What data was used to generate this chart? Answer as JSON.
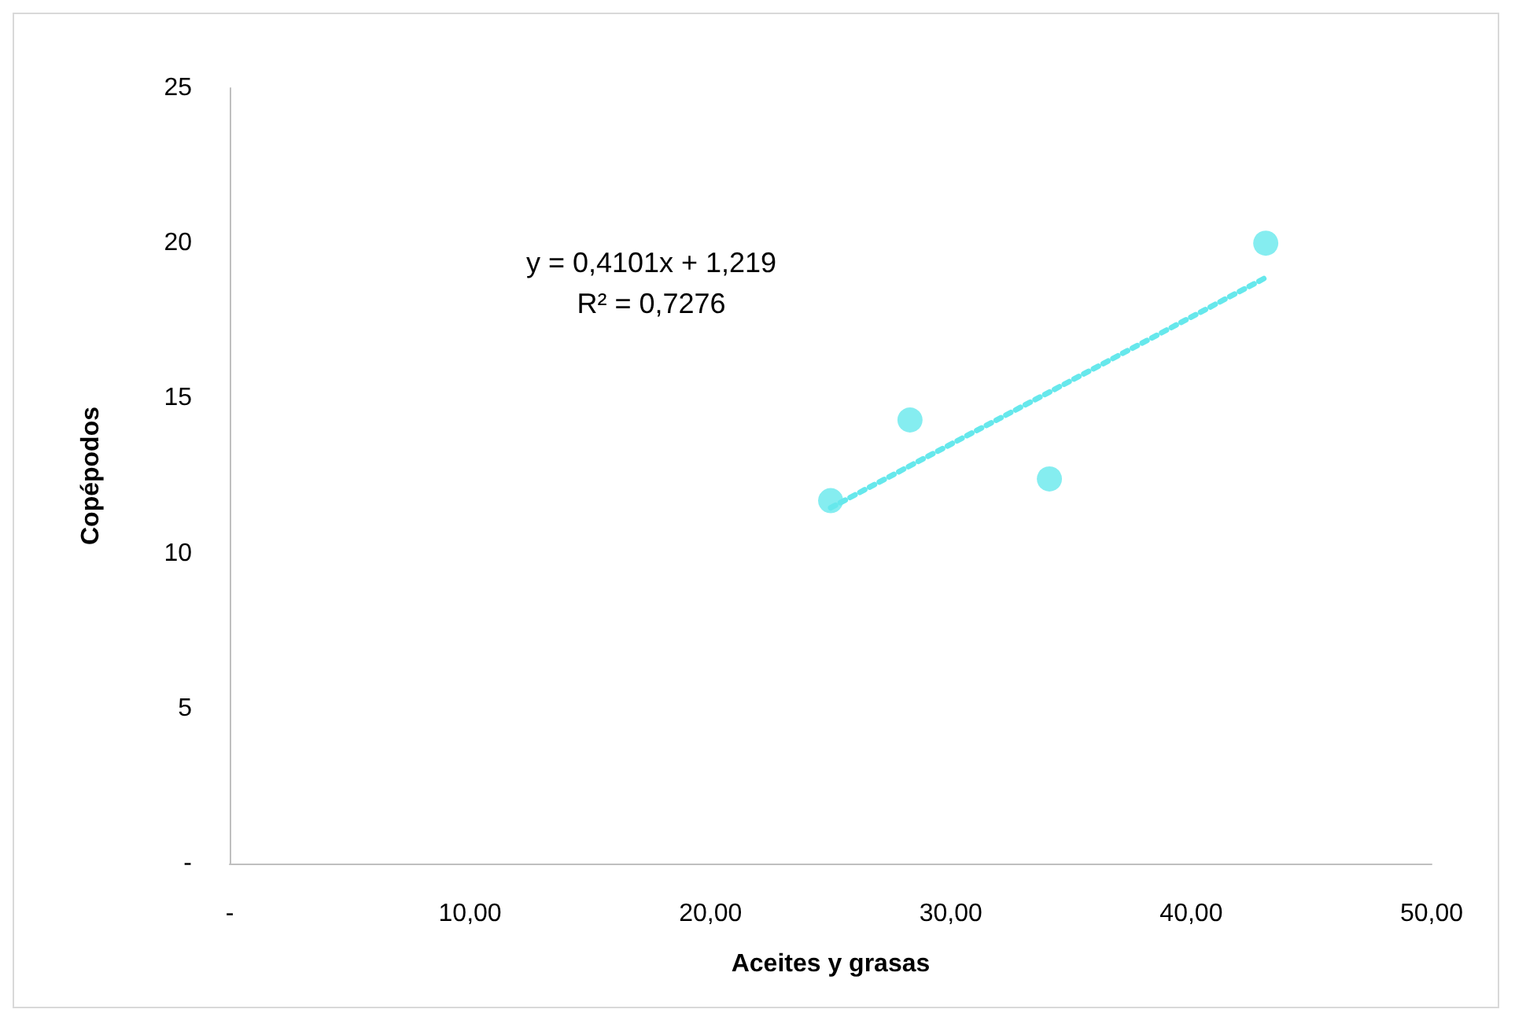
{
  "chart_data": {
    "type": "scatter",
    "xlabel": "Aceites y grasas",
    "ylabel": "Copépodos",
    "marker": "circle",
    "grid": false,
    "xlim": [
      0,
      50
    ],
    "xticks": [
      {
        "value": 0,
        "label": "-"
      },
      {
        "value": 10,
        "label": "10,00"
      },
      {
        "value": 20,
        "label": "20,00"
      },
      {
        "value": 30,
        "label": "30,00"
      },
      {
        "value": 40,
        "label": "40,00"
      },
      {
        "value": 50,
        "label": "50,00"
      }
    ],
    "ylim": [
      0,
      25
    ],
    "yticks": [
      {
        "value": 0,
        "label": "-"
      },
      5,
      10,
      15,
      20,
      25
    ],
    "series": [
      {
        "color": "#66e8ec",
        "x": [
          25.0,
          28.3,
          34.1,
          43.1
        ],
        "values": [
          11.7,
          14.3,
          12.4,
          20.0
        ]
      },
      {
        "type": "line",
        "line_style": "dotted",
        "marker": "none",
        "color": "#66e8ec",
        "x": [
          25.0,
          43.1
        ],
        "values": [
          11.47,
          18.89
        ]
      }
    ],
    "annotations": [
      "y = 0,4101x + 1,219\nR² = 0,7276"
    ]
  }
}
